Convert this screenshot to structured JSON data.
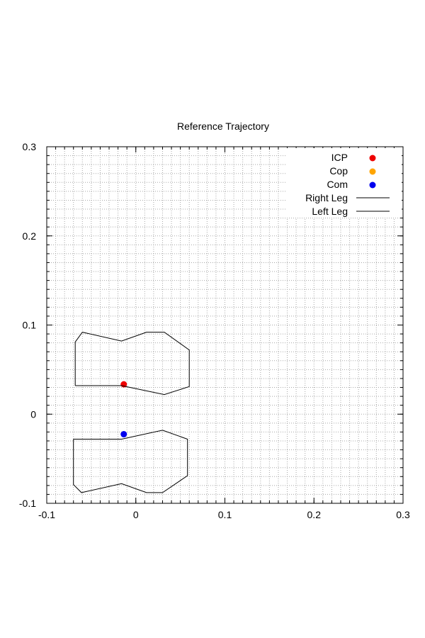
{
  "chart_data": {
    "type": "scatter",
    "title": "Reference Trajectory",
    "xlabel": "",
    "ylabel": "",
    "xlim": [
      -0.1,
      0.3
    ],
    "ylim": [
      -0.1,
      0.3
    ],
    "x_ticks": [
      -0.1,
      0,
      0.1,
      0.2,
      0.3
    ],
    "y_ticks": [
      -0.1,
      0,
      0.1,
      0.2,
      0.3
    ],
    "x_tick_labels": [
      "-0.1",
      "0",
      "0.1",
      "0.2",
      "0.3"
    ],
    "y_tick_labels": [
      "-0.1",
      "0",
      "0.1",
      "0.2",
      "0.3"
    ],
    "grid": true,
    "legend_position": "top-right",
    "series": [
      {
        "name": "ICP",
        "kind": "point",
        "color": "#ee0000",
        "points": [
          [
            -0.0135,
            0.0335
          ]
        ]
      },
      {
        "name": "Cop",
        "kind": "point",
        "color": "#ffa500",
        "points": []
      },
      {
        "name": "Com",
        "kind": "point",
        "color": "#0000ee",
        "points": [
          [
            -0.0135,
            -0.0225
          ]
        ]
      },
      {
        "name": "Right Leg",
        "kind": "polygon",
        "color": "#000000",
        "points": [
          [
            -0.068,
            0.032
          ],
          [
            -0.068,
            0.081
          ],
          [
            -0.06,
            0.092
          ],
          [
            -0.016,
            0.082
          ],
          [
            0.012,
            0.092
          ],
          [
            0.032,
            0.092
          ],
          [
            0.06,
            0.072
          ],
          [
            0.06,
            0.031
          ],
          [
            0.032,
            0.022
          ],
          [
            -0.016,
            0.032
          ],
          [
            -0.068,
            0.032
          ]
        ]
      },
      {
        "name": "Left Leg",
        "kind": "polygon",
        "color": "#000000",
        "points": [
          [
            -0.07,
            -0.028
          ],
          [
            -0.016,
            -0.028
          ],
          [
            0.03,
            -0.018
          ],
          [
            0.058,
            -0.028
          ],
          [
            0.058,
            -0.069
          ],
          [
            0.03,
            -0.088
          ],
          [
            0.012,
            -0.088
          ],
          [
            -0.016,
            -0.078
          ],
          [
            -0.061,
            -0.088
          ],
          [
            -0.07,
            -0.079
          ],
          [
            -0.07,
            -0.028
          ]
        ]
      }
    ]
  }
}
